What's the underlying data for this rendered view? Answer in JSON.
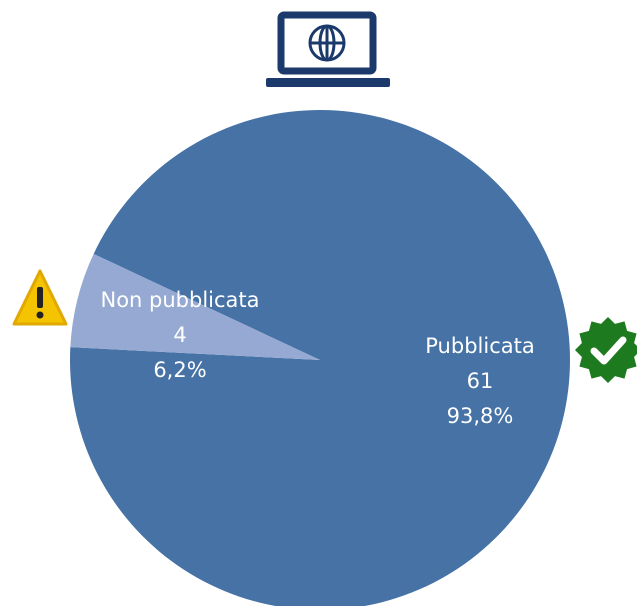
{
  "chart_data": {
    "type": "pie",
    "categories": [
      "Pubblicata",
      "Non pubblicata"
    ],
    "values": [
      61,
      4
    ],
    "percentages": [
      93.8,
      6.2
    ],
    "percentage_labels": [
      "93,8%",
      "6,2%"
    ],
    "colors": [
      "#4672a6",
      "#95a9d2"
    ]
  }
}
